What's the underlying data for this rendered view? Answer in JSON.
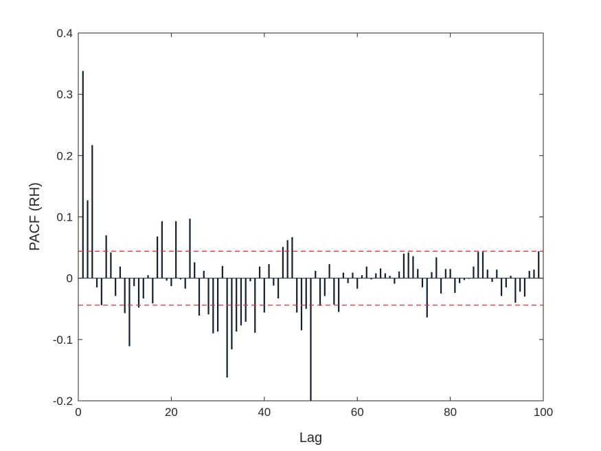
{
  "chart_data": {
    "type": "bar",
    "title": "",
    "xlabel": "Lag",
    "ylabel": "PACF (RH)",
    "xlim": [
      0,
      100
    ],
    "ylim": [
      -0.2,
      0.4
    ],
    "x_ticks": [
      0,
      20,
      40,
      60,
      80,
      100
    ],
    "y_ticks": [
      -0.2,
      -0.1,
      0,
      0.1,
      0.2,
      0.3,
      0.4
    ],
    "x_tick_labels": [
      "0",
      "20",
      "40",
      "60",
      "80",
      "100"
    ],
    "y_tick_labels": [
      "-0.2",
      "-0.1",
      "0",
      "0.1",
      "0.2",
      "0.3",
      "0.4"
    ],
    "grid": false,
    "legend": "none",
    "bar_color": "#102030",
    "bound_color": "#e03030",
    "confidence_bounds": [
      0.044,
      -0.044
    ],
    "series": [
      {
        "x": [
          1,
          2,
          3,
          4,
          5,
          6,
          7,
          8,
          9,
          10,
          11,
          12,
          13,
          14,
          15,
          16,
          17,
          18,
          19,
          20,
          21,
          22,
          23,
          24,
          25,
          26,
          27,
          28,
          29,
          30,
          31,
          32,
          33,
          34,
          35,
          36,
          37,
          38,
          39,
          40,
          41,
          42,
          43,
          44,
          45,
          46,
          47,
          48,
          49,
          50,
          51,
          52,
          53,
          54,
          55,
          56,
          57,
          58,
          59,
          60,
          61,
          62,
          63,
          64,
          65,
          66,
          67,
          68,
          69,
          70,
          71,
          72,
          73,
          74,
          75,
          76,
          77,
          78,
          79,
          80,
          81,
          82,
          83,
          84,
          85,
          86,
          87,
          88,
          89,
          90,
          91,
          92,
          93,
          94,
          95,
          96,
          97,
          98,
          99
        ],
        "values": [
          0.338,
          0.127,
          0.217,
          -0.015,
          -0.044,
          0.07,
          0.042,
          -0.029,
          0.019,
          -0.057,
          -0.111,
          -0.013,
          -0.048,
          -0.033,
          0.005,
          -0.041,
          0.068,
          0.093,
          -0.004,
          -0.013,
          0.093,
          -0.002,
          -0.017,
          0.097,
          0.026,
          -0.061,
          0.012,
          -0.059,
          -0.09,
          -0.087,
          0.02,
          -0.162,
          -0.116,
          -0.087,
          -0.077,
          -0.071,
          -0.005,
          -0.089,
          0.019,
          -0.056,
          0.023,
          -0.012,
          -0.033,
          0.051,
          0.062,
          0.067,
          -0.056,
          -0.085,
          -0.05,
          -0.2,
          0.012,
          -0.045,
          -0.029,
          0.023,
          -0.043,
          -0.055,
          0.009,
          -0.008,
          0.009,
          -0.017,
          0.005,
          0.019,
          -0.002,
          0.008,
          0.016,
          0.008,
          0.004,
          -0.009,
          0.011,
          0.04,
          0.042,
          0.036,
          0.015,
          -0.015,
          -0.064,
          0.01,
          0.034,
          -0.025,
          0.015,
          0.015,
          -0.024,
          -0.008,
          -0.003,
          -0.001,
          0.019,
          0.043,
          0.043,
          0.014,
          -0.006,
          0.014,
          -0.029,
          -0.015,
          0.004,
          -0.04,
          -0.022,
          -0.03,
          0.012,
          0.014,
          0.044
        ]
      }
    ]
  }
}
